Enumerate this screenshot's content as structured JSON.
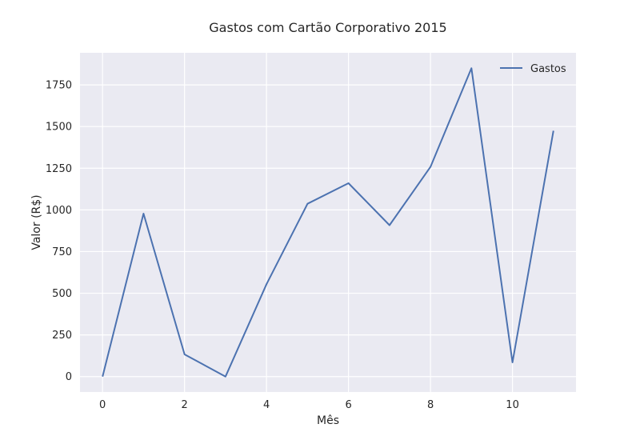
{
  "chart_data": {
    "type": "line",
    "title": "Gastos com Cartão Corporativo 2015",
    "xlabel": "Mês",
    "ylabel": "Valor (R$)",
    "xlim": [
      -0.55,
      11.55
    ],
    "ylim": [
      -92.5,
      1942.5
    ],
    "xticks": [
      0,
      2,
      4,
      6,
      8,
      10
    ],
    "yticks": [
      0,
      250,
      500,
      750,
      1000,
      1250,
      1500,
      1750
    ],
    "x": [
      0,
      1,
      2,
      3,
      4,
      5,
      6,
      7,
      8,
      9,
      10,
      11
    ],
    "series": [
      {
        "name": "Gastos",
        "color": "#4c72b0",
        "values": [
          0,
          978,
          133,
          0,
          554,
          1037,
          1160,
          908,
          1258,
          1850,
          85,
          1475
        ]
      }
    ],
    "grid": true,
    "background": "#eaeaf2",
    "gridColor": "#ffffff",
    "legend": "top-right"
  }
}
